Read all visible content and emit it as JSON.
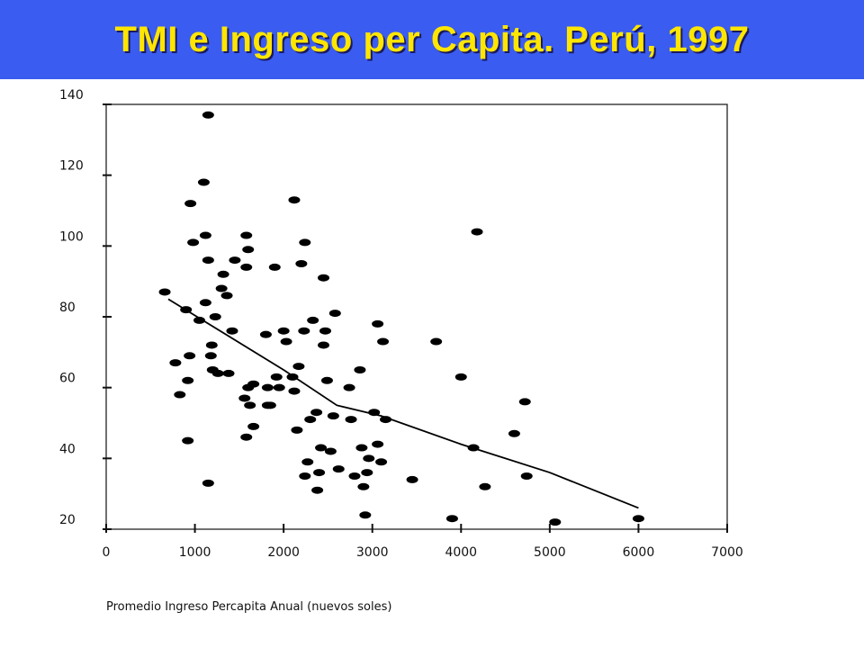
{
  "title": "TMI e Ingreso per Capita. Perú, 1997",
  "chart_data": {
    "type": "scatter",
    "title": "TMI e Ingreso per Capita. Perú, 1997",
    "xlabel": "Promedio Ingreso Percapita Anual  (nuevos soles)",
    "ylabel": "",
    "xlim": [
      0,
      7000
    ],
    "ylim": [
      20,
      140
    ],
    "xticks": [
      "0",
      "1000",
      "2000",
      "3000",
      "4000",
      "5000",
      "6000",
      "7000"
    ],
    "yticks": [
      "20",
      "40",
      "60",
      "80",
      "100",
      "120",
      "140"
    ],
    "grid": false,
    "legend": "none",
    "point_color": "#000000",
    "series": [
      {
        "points": [
          [
            660,
            87
          ],
          [
            780,
            67
          ],
          [
            830,
            58
          ],
          [
            900,
            82
          ],
          [
            920,
            62
          ],
          [
            920,
            45
          ],
          [
            940,
            69
          ],
          [
            950,
            112
          ],
          [
            980,
            101
          ],
          [
            1050,
            79
          ],
          [
            1100,
            118
          ],
          [
            1120,
            103
          ],
          [
            1120,
            84
          ],
          [
            1150,
            137
          ],
          [
            1150,
            96
          ],
          [
            1150,
            33
          ],
          [
            1180,
            69
          ],
          [
            1190,
            72
          ],
          [
            1200,
            65
          ],
          [
            1230,
            80
          ],
          [
            1260,
            64
          ],
          [
            1300,
            88
          ],
          [
            1320,
            92
          ],
          [
            1360,
            86
          ],
          [
            1380,
            64
          ],
          [
            1420,
            76
          ],
          [
            1450,
            96
          ],
          [
            1560,
            57
          ],
          [
            1580,
            103
          ],
          [
            1580,
            94
          ],
          [
            1580,
            46
          ],
          [
            1600,
            99
          ],
          [
            1600,
            60
          ],
          [
            1620,
            55
          ],
          [
            1660,
            61
          ],
          [
            1660,
            49
          ],
          [
            1800,
            75
          ],
          [
            1820,
            55
          ],
          [
            1820,
            60
          ],
          [
            1850,
            55
          ],
          [
            1900,
            94
          ],
          [
            1920,
            63
          ],
          [
            1950,
            60
          ],
          [
            2000,
            76
          ],
          [
            2030,
            73
          ],
          [
            2100,
            63
          ],
          [
            2120,
            113
          ],
          [
            2120,
            59
          ],
          [
            2150,
            48
          ],
          [
            2170,
            66
          ],
          [
            2200,
            95
          ],
          [
            2230,
            76
          ],
          [
            2240,
            101
          ],
          [
            2240,
            35
          ],
          [
            2270,
            39
          ],
          [
            2300,
            51
          ],
          [
            2330,
            79
          ],
          [
            2370,
            53
          ],
          [
            2380,
            31
          ],
          [
            2400,
            36
          ],
          [
            2420,
            43
          ],
          [
            2450,
            91
          ],
          [
            2450,
            72
          ],
          [
            2470,
            76
          ],
          [
            2490,
            62
          ],
          [
            2530,
            42
          ],
          [
            2560,
            52
          ],
          [
            2580,
            81
          ],
          [
            2620,
            37
          ],
          [
            2740,
            60
          ],
          [
            2760,
            51
          ],
          [
            2800,
            35
          ],
          [
            2860,
            65
          ],
          [
            2880,
            43
          ],
          [
            2900,
            32
          ],
          [
            2920,
            24
          ],
          [
            2940,
            36
          ],
          [
            2960,
            40
          ],
          [
            3020,
            53
          ],
          [
            3060,
            78
          ],
          [
            3060,
            44
          ],
          [
            3100,
            39
          ],
          [
            3120,
            73
          ],
          [
            3150,
            51
          ],
          [
            3450,
            34
          ],
          [
            3720,
            73
          ],
          [
            3900,
            23
          ],
          [
            4000,
            63
          ],
          [
            4140,
            43
          ],
          [
            4180,
            104
          ],
          [
            4270,
            32
          ],
          [
            4600,
            47
          ],
          [
            4720,
            56
          ],
          [
            4740,
            35
          ],
          [
            5060,
            22
          ],
          [
            6000,
            23
          ]
        ]
      },
      {
        "type": "line",
        "points": [
          [
            700,
            85
          ],
          [
            2000,
            65
          ],
          [
            2600,
            55
          ],
          [
            3100,
            52
          ],
          [
            4000,
            44
          ],
          [
            5000,
            36
          ],
          [
            6000,
            26
          ]
        ]
      }
    ]
  }
}
